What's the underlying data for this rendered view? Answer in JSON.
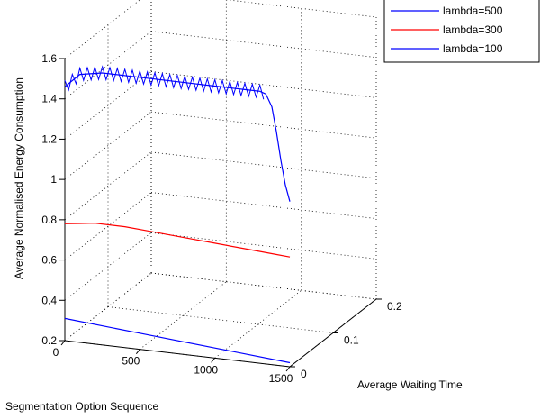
{
  "chart_data": {
    "type": "line3d",
    "title": "",
    "xlabel": "Segmentation Option Sequence",
    "ylabel": "Average Waiting Time",
    "zlabel": "Average Normalised Energy Consumption",
    "xlim": [
      0,
      1500
    ],
    "ylim": [
      0,
      0.2
    ],
    "zlim": [
      0.2,
      1.6
    ],
    "x_ticks": [
      "0",
      "500",
      "1000",
      "1500"
    ],
    "y_ticks": [
      "0",
      "0.1",
      "0.2"
    ],
    "z_ticks": [
      "0.2",
      "0.4",
      "0.6",
      "0.8",
      "1",
      "1.2",
      "1.4",
      "1.6"
    ],
    "grid": true,
    "legend_position": "top-right",
    "series": [
      {
        "name": "lambda=500",
        "color": "#0000ff",
        "x": [
          0,
          100,
          250,
          500,
          750,
          1000,
          1200,
          1300,
          1340,
          1380,
          1410,
          1440,
          1470,
          1500
        ],
        "y": [
          0,
          0,
          0,
          0,
          0,
          0,
          0,
          0,
          0,
          0,
          0,
          0,
          0,
          0
        ],
        "z": [
          1.46,
          1.53,
          1.55,
          1.55,
          1.55,
          1.55,
          1.55,
          1.55,
          1.54,
          1.48,
          1.36,
          1.22,
          1.1,
          1.02
        ]
      },
      {
        "name": "lambda=300",
        "color": "#ff0000",
        "x": [
          0,
          100,
          200,
          400,
          600,
          800,
          1000,
          1200,
          1400,
          1500
        ],
        "y": [
          0,
          0,
          0,
          0,
          0,
          0,
          0,
          0,
          0,
          0
        ],
        "z": [
          0.78,
          0.79,
          0.8,
          0.8,
          0.79,
          0.78,
          0.77,
          0.76,
          0.75,
          0.745
        ]
      },
      {
        "name": "lambda=100",
        "color": "#0000ff",
        "x": [
          0,
          500,
          1000,
          1500
        ],
        "y": [
          0,
          0,
          0,
          0
        ],
        "z": [
          0.31,
          0.28,
          0.25,
          0.22
        ]
      }
    ]
  }
}
